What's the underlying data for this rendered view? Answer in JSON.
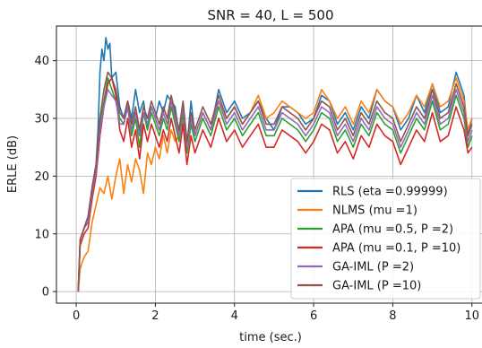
{
  "chart_data": {
    "type": "line",
    "title": "SNR = 40, L = 500",
    "xlabel": "time (sec.)",
    "ylabel": "ERLE (dB)",
    "xlim": [
      -0.5,
      10.3
    ],
    "ylim": [
      -2,
      46
    ],
    "xticks": [
      0,
      2,
      4,
      6,
      8,
      10
    ],
    "yticks": [
      0,
      10,
      20,
      30,
      40
    ],
    "grid": true,
    "legend_position": "lower-right",
    "series": [
      {
        "name": "RLS (eta =0.99999)",
        "color": "#1f77b4",
        "x": [
          0.05,
          0.1,
          0.2,
          0.3,
          0.4,
          0.5,
          0.55,
          0.6,
          0.65,
          0.7,
          0.75,
          0.8,
          0.85,
          0.9,
          1.0,
          1.1,
          1.2,
          1.3,
          1.4,
          1.5,
          1.6,
          1.7,
          1.8,
          1.9,
          2.0,
          2.1,
          2.2,
          2.3,
          2.4,
          2.5,
          2.6,
          2.7,
          2.8,
          2.9,
          3.0,
          3.2,
          3.4,
          3.6,
          3.8,
          4.0,
          4.2,
          4.4,
          4.6,
          4.8,
          5.0,
          5.2,
          5.4,
          5.6,
          5.8,
          6.0,
          6.2,
          6.4,
          6.6,
          6.8,
          7.0,
          7.2,
          7.4,
          7.6,
          7.8,
          8.0,
          8.2,
          8.4,
          8.6,
          8.8,
          9.0,
          9.2,
          9.4,
          9.6,
          9.8,
          9.9,
          10.0
        ],
        "y": [
          0,
          9,
          11,
          13,
          18,
          22,
          28,
          38,
          42,
          40,
          44,
          42,
          43,
          37,
          38,
          32,
          30,
          33,
          30,
          35,
          31,
          33,
          28,
          32,
          30,
          33,
          31,
          34,
          33,
          32,
          27,
          30,
          25,
          33,
          27,
          31,
          28,
          35,
          31,
          33,
          30,
          31,
          33,
          30,
          28,
          32,
          32,
          31,
          29,
          30,
          34,
          33,
          29,
          31,
          28,
          32,
          30,
          35,
          33,
          32,
          28,
          30,
          34,
          31,
          36,
          31,
          32,
          38,
          34,
          27,
          30
        ]
      },
      {
        "name": "NLMS (mu =1)",
        "color": "#ff7f0e",
        "x": [
          0.05,
          0.1,
          0.2,
          0.3,
          0.4,
          0.5,
          0.6,
          0.7,
          0.8,
          0.9,
          1.0,
          1.1,
          1.2,
          1.3,
          1.4,
          1.5,
          1.6,
          1.7,
          1.8,
          1.9,
          2.0,
          2.1,
          2.2,
          2.3,
          2.4,
          2.5,
          2.6,
          2.7,
          2.8,
          2.9,
          3.0,
          3.2,
          3.4,
          3.6,
          3.8,
          4.0,
          4.2,
          4.4,
          4.6,
          4.8,
          5.0,
          5.2,
          5.4,
          5.6,
          5.8,
          6.0,
          6.2,
          6.4,
          6.6,
          6.8,
          7.0,
          7.2,
          7.4,
          7.6,
          7.8,
          8.0,
          8.2,
          8.4,
          8.6,
          8.8,
          9.0,
          9.2,
          9.4,
          9.6,
          9.8,
          9.9,
          10.0
        ],
        "y": [
          0,
          4,
          6,
          7,
          12,
          15,
          18,
          17,
          20,
          16,
          20,
          23,
          17,
          22,
          19,
          23,
          21,
          17,
          24,
          22,
          25,
          23,
          27,
          24,
          28,
          26,
          27,
          30,
          26,
          29,
          27,
          31,
          28,
          33,
          30,
          32,
          29,
          31,
          34,
          30,
          31,
          33,
          32,
          31,
          30,
          31,
          35,
          33,
          30,
          32,
          29,
          33,
          31,
          35,
          33,
          32,
          29,
          31,
          34,
          32,
          36,
          32,
          33,
          37,
          33,
          28,
          30
        ]
      },
      {
        "name": "APA (mu =0.5, P =2)",
        "color": "#2ca02c",
        "x": [
          0.05,
          0.1,
          0.2,
          0.3,
          0.4,
          0.5,
          0.6,
          0.7,
          0.8,
          0.9,
          1.0,
          1.1,
          1.2,
          1.3,
          1.4,
          1.5,
          1.6,
          1.7,
          1.8,
          1.9,
          2.0,
          2.1,
          2.2,
          2.3,
          2.4,
          2.5,
          2.6,
          2.7,
          2.8,
          2.9,
          3.0,
          3.2,
          3.4,
          3.6,
          3.8,
          4.0,
          4.2,
          4.4,
          4.6,
          4.8,
          5.0,
          5.2,
          5.4,
          5.6,
          5.8,
          6.0,
          6.2,
          6.4,
          6.6,
          6.8,
          7.0,
          7.2,
          7.4,
          7.6,
          7.8,
          8.0,
          8.2,
          8.4,
          8.6,
          8.8,
          9.0,
          9.2,
          9.4,
          9.6,
          9.8,
          9.9,
          10.0
        ],
        "y": [
          0,
          9,
          11,
          12,
          17,
          21,
          29,
          33,
          37,
          35,
          33,
          30,
          29,
          32,
          27,
          30,
          25,
          31,
          28,
          31,
          29,
          27,
          30,
          28,
          32,
          29,
          26,
          31,
          24,
          29,
          26,
          30,
          27,
          32,
          28,
          30,
          27,
          29,
          31,
          27,
          27,
          30,
          29,
          28,
          26,
          28,
          31,
          30,
          26,
          28,
          25,
          29,
          27,
          31,
          29,
          28,
          24,
          27,
          30,
          28,
          33,
          28,
          29,
          34,
          30,
          25,
          27
        ]
      },
      {
        "name": "APA (mu =0.1, P =10)",
        "color": "#d62728",
        "x": [
          0.05,
          0.1,
          0.2,
          0.3,
          0.4,
          0.5,
          0.6,
          0.7,
          0.8,
          0.9,
          1.0,
          1.1,
          1.2,
          1.3,
          1.4,
          1.5,
          1.6,
          1.7,
          1.8,
          1.9,
          2.0,
          2.1,
          2.2,
          2.3,
          2.4,
          2.5,
          2.6,
          2.7,
          2.8,
          2.9,
          3.0,
          3.2,
          3.4,
          3.6,
          3.8,
          4.0,
          4.2,
          4.4,
          4.6,
          4.8,
          5.0,
          5.2,
          5.4,
          5.6,
          5.8,
          6.0,
          6.2,
          6.4,
          6.6,
          6.8,
          7.0,
          7.2,
          7.4,
          7.6,
          7.8,
          8.0,
          8.2,
          8.4,
          8.6,
          8.8,
          9.0,
          9.2,
          9.4,
          9.6,
          9.8,
          9.9,
          10.0
        ],
        "y": [
          0,
          8,
          10,
          11,
          16,
          20,
          27,
          32,
          36,
          37,
          34,
          28,
          26,
          30,
          25,
          28,
          23,
          29,
          26,
          29,
          27,
          25,
          28,
          26,
          30,
          27,
          24,
          29,
          22,
          27,
          24,
          28,
          25,
          30,
          26,
          28,
          25,
          27,
          29,
          25,
          25,
          28,
          27,
          26,
          24,
          26,
          29,
          28,
          24,
          26,
          23,
          27,
          25,
          29,
          27,
          26,
          22,
          25,
          28,
          26,
          31,
          26,
          27,
          32,
          28,
          24,
          25
        ]
      },
      {
        "name": "GA-IML (P =2)",
        "color": "#9467bd",
        "x": [
          0.05,
          0.1,
          0.2,
          0.3,
          0.4,
          0.5,
          0.6,
          0.7,
          0.8,
          0.9,
          1.0,
          1.1,
          1.2,
          1.3,
          1.4,
          1.5,
          1.6,
          1.7,
          1.8,
          1.9,
          2.0,
          2.1,
          2.2,
          2.3,
          2.4,
          2.5,
          2.6,
          2.7,
          2.8,
          2.9,
          3.0,
          3.2,
          3.4,
          3.6,
          3.8,
          4.0,
          4.2,
          4.4,
          4.6,
          4.8,
          5.0,
          5.2,
          5.4,
          5.6,
          5.8,
          6.0,
          6.2,
          6.4,
          6.6,
          6.8,
          7.0,
          7.2,
          7.4,
          7.6,
          7.8,
          8.0,
          8.2,
          8.4,
          8.6,
          8.8,
          9.0,
          9.2,
          9.4,
          9.6,
          9.8,
          9.9,
          10.0
        ],
        "y": [
          0,
          9,
          11,
          12,
          17,
          21,
          28,
          32,
          35,
          34,
          33,
          29,
          29,
          32,
          28,
          31,
          27,
          31,
          29,
          32,
          30,
          28,
          31,
          29,
          33,
          30,
          27,
          32,
          25,
          30,
          27,
          31,
          28,
          33,
          29,
          31,
          28,
          30,
          32,
          28,
          28,
          31,
          30,
          29,
          27,
          29,
          32,
          31,
          27,
          29,
          26,
          30,
          28,
          32,
          30,
          29,
          25,
          28,
          31,
          29,
          34,
          29,
          30,
          35,
          31,
          26,
          28
        ]
      },
      {
        "name": "GA-IML (P =10)",
        "color": "#8c564b",
        "x": [
          0.05,
          0.1,
          0.2,
          0.3,
          0.4,
          0.5,
          0.6,
          0.7,
          0.8,
          0.9,
          1.0,
          1.1,
          1.2,
          1.3,
          1.4,
          1.5,
          1.6,
          1.7,
          1.8,
          1.9,
          2.0,
          2.1,
          2.2,
          2.3,
          2.4,
          2.5,
          2.6,
          2.7,
          2.8,
          2.9,
          3.0,
          3.2,
          3.4,
          3.6,
          3.8,
          4.0,
          4.2,
          4.4,
          4.6,
          4.8,
          5.0,
          5.2,
          5.4,
          5.6,
          5.8,
          6.0,
          6.2,
          6.4,
          6.6,
          6.8,
          7.0,
          7.2,
          7.4,
          7.6,
          7.8,
          8.0,
          8.2,
          8.4,
          8.6,
          8.8,
          9.0,
          9.2,
          9.4,
          9.6,
          9.8,
          9.9,
          10.0
        ],
        "y": [
          0,
          9,
          11,
          13,
          18,
          22,
          30,
          35,
          38,
          37,
          35,
          31,
          30,
          33,
          29,
          32,
          28,
          32,
          30,
          33,
          31,
          29,
          32,
          30,
          34,
          31,
          28,
          33,
          26,
          31,
          28,
          32,
          29,
          34,
          30,
          32,
          29,
          31,
          33,
          29,
          29,
          32,
          31,
          30,
          28,
          30,
          33,
          32,
          28,
          30,
          27,
          31,
          29,
          33,
          31,
          30,
          26,
          29,
          32,
          30,
          35,
          30,
          31,
          36,
          32,
          27,
          29
        ]
      }
    ]
  }
}
